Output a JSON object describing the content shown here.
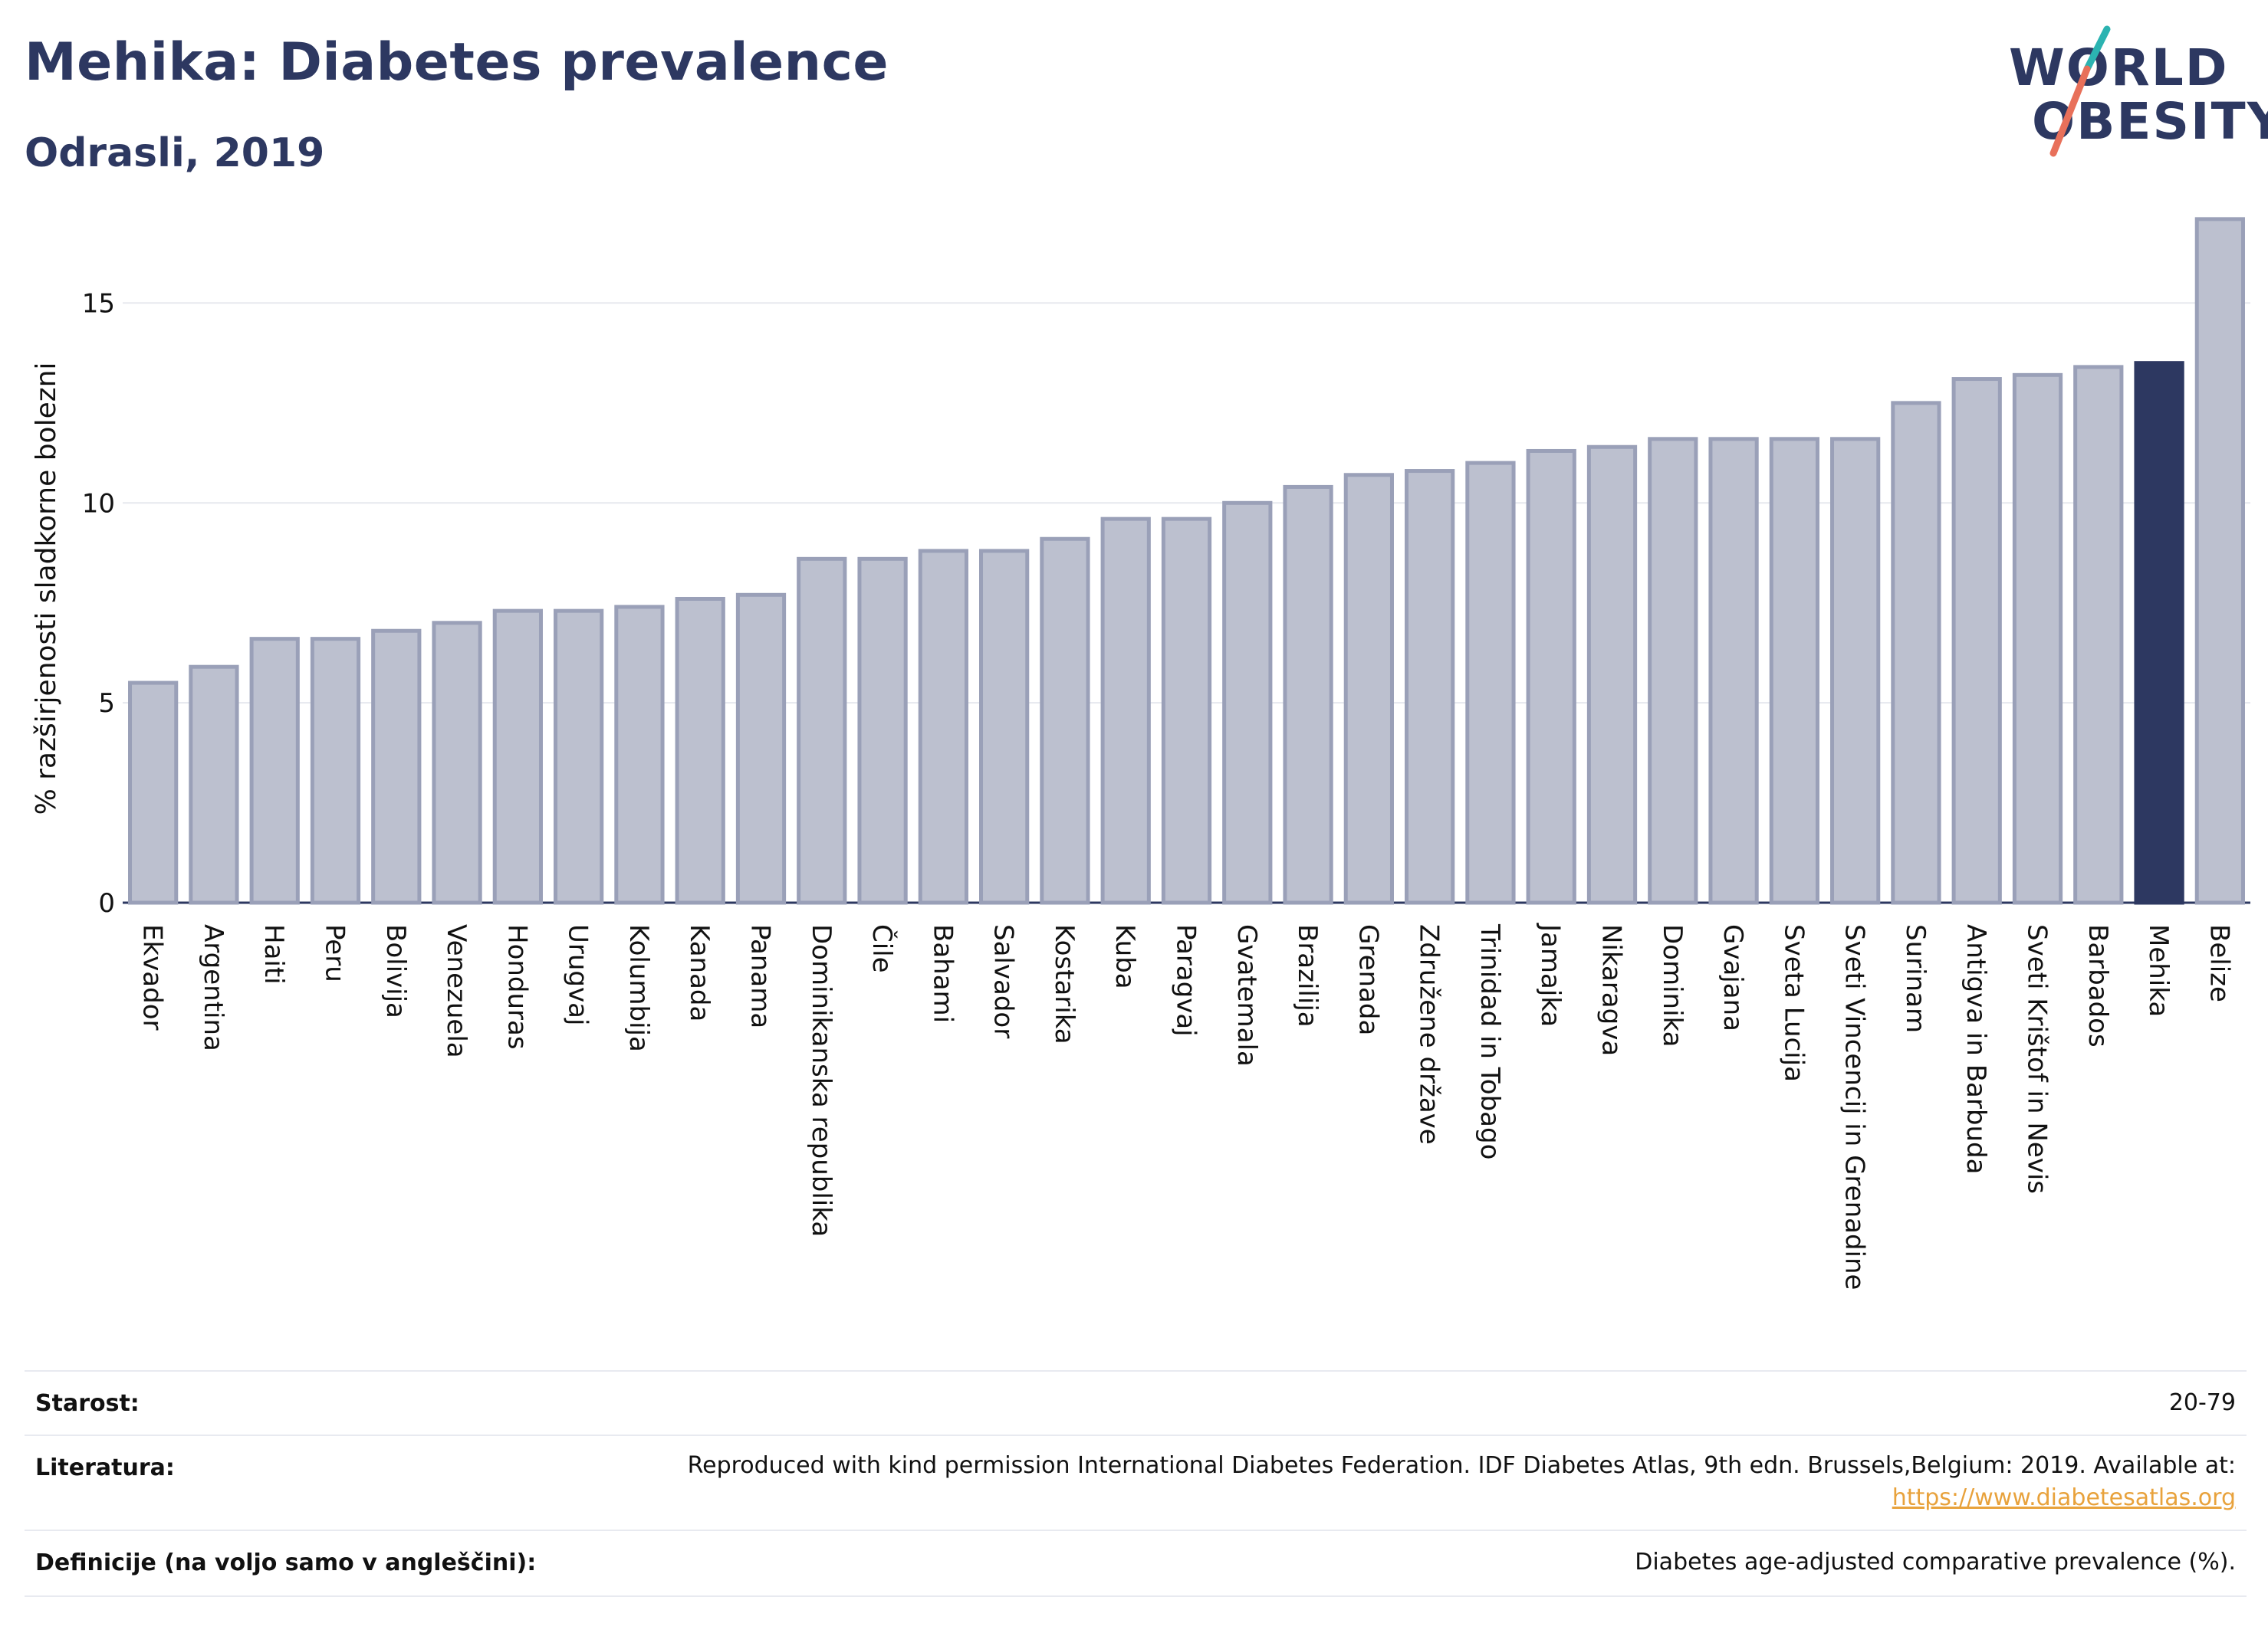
{
  "header": {
    "title": "Mehika: Diabetes prevalence",
    "subtitle": "Odrasli, 2019"
  },
  "logo": {
    "line1": "WORLD",
    "line2": "OBESITY",
    "accent_colors": [
      "#2bb3b1",
      "#e8705a"
    ]
  },
  "colors": {
    "bar_default": "#bcc0cf",
    "bar_default_border": "#9aa0b8",
    "bar_highlight": "#2d3861",
    "text": "#2d3861",
    "link": "#e8a23c"
  },
  "chart_data": {
    "type": "bar",
    "title": "Mehika: Diabetes prevalence",
    "subtitle": "Odrasli, 2019",
    "ylabel": "% razširjenosti sladkorne bolezni",
    "xlabel": "",
    "ylim": [
      0,
      17.5
    ],
    "yticks": [
      0,
      5,
      10,
      15
    ],
    "grid": true,
    "highlight": "Mehika",
    "categories": [
      "Ekvador",
      "Argentina",
      "Haiti",
      "Peru",
      "Bolivija",
      "Venezuela",
      "Honduras",
      "Urugvaj",
      "Kolumbija",
      "Kanada",
      "Panama",
      "Dominikanska republika",
      "Čile",
      "Bahami",
      "Salvador",
      "Kostarika",
      "Kuba",
      "Paragvaj",
      "Gvatemala",
      "Brazilija",
      "Grenada",
      "Združene države",
      "Trinidad in Tobago",
      "Jamajka",
      "Nikaragva",
      "Dominika",
      "Gvajana",
      "Sveta Lucija",
      "Sveti Vincencij in Grenadine",
      "Surinam",
      "Antigva in Barbuda",
      "Sveti Krištof in Nevis",
      "Barbados",
      "Mehika",
      "Belize"
    ],
    "values": [
      5.5,
      5.9,
      6.6,
      6.6,
      6.8,
      7.0,
      7.3,
      7.3,
      7.4,
      7.6,
      7.7,
      8.6,
      8.6,
      8.8,
      8.8,
      9.1,
      9.6,
      9.6,
      10.0,
      10.4,
      10.7,
      10.8,
      11.0,
      11.3,
      11.4,
      11.6,
      11.6,
      11.6,
      11.6,
      12.5,
      13.1,
      13.2,
      13.4,
      13.5,
      17.1
    ]
  },
  "meta": {
    "age_label": "Starost:",
    "age_value": "20-79",
    "ref_label": "Literatura:",
    "ref_text": "Reproduced with kind permission International Diabetes Federation. IDF Diabetes Atlas, 9th edn. Brussels,Belgium: 2019. Available at:",
    "ref_link": "https://www.diabetesatlas.org",
    "def_label": "Definicije (na voljo samo v angleščini):",
    "def_value": "Diabetes age-adjusted comparative prevalence (%)."
  }
}
